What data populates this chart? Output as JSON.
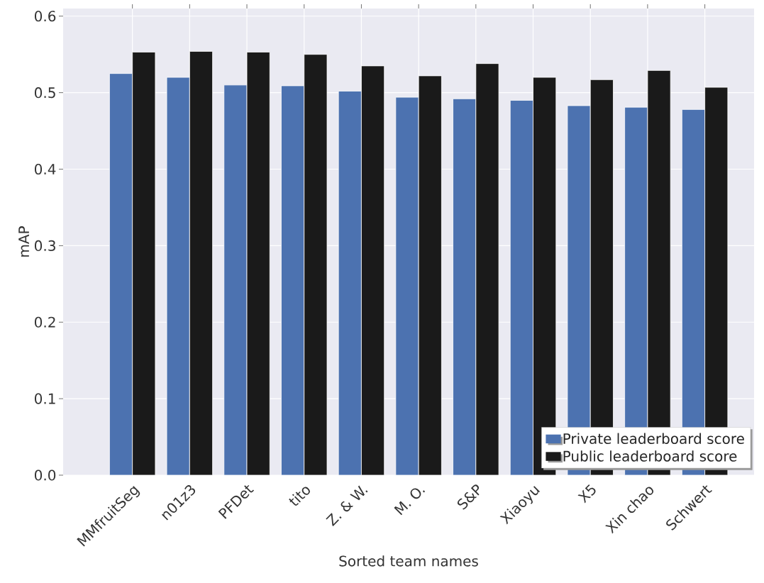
{
  "chart_data": {
    "type": "bar",
    "xlabel": "Sorted team names",
    "ylabel": "mAP",
    "categories": [
      "MMfruitSeg",
      "n01z3",
      "PFDet",
      "tito",
      "Z. & W.",
      "M. O.",
      "S&P",
      "Xiaoyu",
      "X5",
      "Xin chao",
      "Schwert"
    ],
    "series": [
      {
        "name": "Private leaderboard score",
        "color": "#4c72b0",
        "values": [
          0.525,
          0.52,
          0.51,
          0.509,
          0.502,
          0.494,
          0.492,
          0.49,
          0.483,
          0.481,
          0.478
        ]
      },
      {
        "name": "Public leaderboard score",
        "color": "#1a1a1a",
        "values": [
          0.553,
          0.554,
          0.553,
          0.55,
          0.535,
          0.522,
          0.538,
          0.52,
          0.517,
          0.529,
          0.507
        ]
      }
    ],
    "ylim": [
      0,
      0.61
    ],
    "yticks": [
      {
        "value": 0,
        "label": "0.0"
      },
      0.1,
      0.2,
      0.3,
      0.4,
      0.5,
      0.6
    ],
    "grid": true,
    "legend": "bottom right"
  }
}
